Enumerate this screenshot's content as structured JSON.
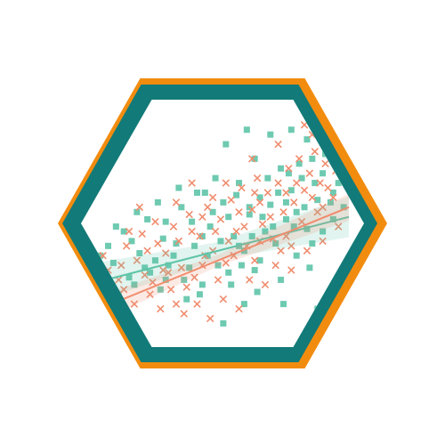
{
  "chart_data": {
    "type": "scatter",
    "title": "",
    "xlabel": "",
    "ylabel": "",
    "xlim": [
      0,
      100
    ],
    "ylim": [
      0,
      100
    ],
    "grid": false,
    "legend": "none",
    "frame": "hexagon",
    "frame_colors": {
      "outer": "#F28C0F",
      "inner": "#127A78"
    },
    "series": [
      {
        "marker": "square",
        "color": "#5EC4A8",
        "fit": {
          "intercept": 28,
          "slope": 0.28,
          "band": 6
        },
        "points": [
          [
            10,
            37
          ],
          [
            18,
            28
          ],
          [
            22,
            35
          ],
          [
            6,
            32
          ],
          [
            12,
            24
          ],
          [
            16,
            31
          ],
          [
            20,
            41
          ],
          [
            24,
            33
          ],
          [
            28,
            26
          ],
          [
            8,
            44
          ],
          [
            14,
            50
          ],
          [
            26,
            38
          ],
          [
            30,
            30
          ],
          [
            34,
            45
          ],
          [
            38,
            22
          ],
          [
            40,
            54
          ],
          [
            44,
            28
          ],
          [
            46,
            40
          ],
          [
            50,
            36
          ],
          [
            52,
            62
          ],
          [
            54,
            33
          ],
          [
            56,
            48
          ],
          [
            58,
            70
          ],
          [
            60,
            42
          ],
          [
            62,
            57
          ],
          [
            64,
            34
          ],
          [
            66,
            64
          ],
          [
            68,
            50
          ],
          [
            70,
            61
          ],
          [
            72,
            45
          ],
          [
            74,
            76
          ],
          [
            76,
            55
          ],
          [
            78,
            67
          ],
          [
            80,
            58
          ],
          [
            82,
            72
          ],
          [
            84,
            51
          ],
          [
            86,
            80
          ],
          [
            88,
            63
          ],
          [
            90,
            74
          ],
          [
            92,
            85
          ],
          [
            94,
            66
          ],
          [
            96,
            70
          ],
          [
            98,
            60
          ],
          [
            36,
            60
          ],
          [
            42,
            66
          ],
          [
            48,
            58
          ],
          [
            64,
            80
          ],
          [
            70,
            90
          ],
          [
            78,
            92
          ],
          [
            84,
            88
          ],
          [
            52,
            12
          ],
          [
            60,
            20
          ],
          [
            88,
            18
          ],
          [
            74,
            30
          ],
          [
            30,
            54
          ],
          [
            58,
            44
          ],
          [
            62,
            60
          ],
          [
            80,
            40
          ],
          [
            66,
            38
          ],
          [
            86,
            45
          ],
          [
            94,
            55
          ],
          [
            44,
            48
          ],
          [
            54,
            56
          ],
          [
            76,
            62
          ],
          [
            90,
            50
          ],
          [
            33,
            40
          ],
          [
            39,
            35
          ],
          [
            47,
            52
          ],
          [
            57,
            65
          ],
          [
            69,
            72
          ],
          [
            81,
            78
          ],
          [
            91,
            82
          ],
          [
            23,
            55
          ],
          [
            17,
            46
          ],
          [
            71,
            52
          ],
          [
            83,
            60
          ],
          [
            41,
            44
          ],
          [
            27,
            62
          ],
          [
            35,
            68
          ],
          [
            49,
            72
          ],
          [
            63,
            48
          ],
          [
            73,
            66
          ],
          [
            79,
            52
          ],
          [
            87,
            70
          ],
          [
            95,
            78
          ],
          [
            5,
            40
          ],
          [
            11,
            52
          ],
          [
            19,
            58
          ],
          [
            29,
            47
          ],
          [
            45,
            66
          ],
          [
            55,
            28
          ],
          [
            65,
            25
          ],
          [
            75,
            20
          ],
          [
            85,
            35
          ],
          [
            53,
            86
          ],
          [
            61,
            92
          ],
          [
            89,
            95
          ],
          [
            97,
            88
          ],
          [
            37,
            30
          ],
          [
            43,
            24
          ],
          [
            59,
            36
          ],
          [
            67,
            56
          ],
          [
            77,
            74
          ],
          [
            93,
            62
          ],
          [
            31,
            36
          ],
          [
            51,
            46
          ]
        ]
      },
      {
        "marker": "cross",
        "color": "#F08D6E",
        "fit": {
          "intercept": 16,
          "slope": 0.44,
          "band": 4
        },
        "points": [
          [
            8,
            34
          ],
          [
            12,
            30
          ],
          [
            15,
            44
          ],
          [
            19,
            38
          ],
          [
            21,
            49
          ],
          [
            25,
            29
          ],
          [
            27,
            45
          ],
          [
            30,
            41
          ],
          [
            33,
            52
          ],
          [
            36,
            35
          ],
          [
            39,
            57
          ],
          [
            41,
            31
          ],
          [
            43,
            48
          ],
          [
            46,
            60
          ],
          [
            48,
            42
          ],
          [
            51,
            55
          ],
          [
            53,
            37
          ],
          [
            55,
            63
          ],
          [
            57,
            50
          ],
          [
            59,
            68
          ],
          [
            61,
            44
          ],
          [
            63,
            59
          ],
          [
            65,
            72
          ],
          [
            67,
            53
          ],
          [
            69,
            66
          ],
          [
            71,
            47
          ],
          [
            73,
            70
          ],
          [
            75,
            58
          ],
          [
            77,
            76
          ],
          [
            79,
            62
          ],
          [
            81,
            80
          ],
          [
            83,
            67
          ],
          [
            85,
            74
          ],
          [
            87,
            83
          ],
          [
            89,
            70
          ],
          [
            91,
            78
          ],
          [
            93,
            88
          ],
          [
            95,
            75
          ],
          [
            97,
            82
          ],
          [
            99,
            70
          ],
          [
            10,
            22
          ],
          [
            14,
            26
          ],
          [
            18,
            20
          ],
          [
            24,
            24
          ],
          [
            28,
            18
          ],
          [
            32,
            26
          ],
          [
            37,
            16
          ],
          [
            42,
            20
          ],
          [
            47,
            14
          ],
          [
            52,
            22
          ],
          [
            58,
            18
          ],
          [
            62,
            30
          ],
          [
            68,
            28
          ],
          [
            72,
            36
          ],
          [
            78,
            34
          ],
          [
            84,
            42
          ],
          [
            90,
            46
          ],
          [
            96,
            52
          ],
          [
            20,
            60
          ],
          [
            26,
            54
          ],
          [
            34,
            62
          ],
          [
            40,
            50
          ],
          [
            45,
            40
          ],
          [
            50,
            30
          ],
          [
            56,
            40
          ],
          [
            60,
            52
          ],
          [
            66,
            46
          ],
          [
            70,
            56
          ],
          [
            76,
            48
          ],
          [
            82,
            54
          ],
          [
            88,
            58
          ],
          [
            94,
            64
          ],
          [
            16,
            50
          ],
          [
            22,
            32
          ],
          [
            31,
            33
          ],
          [
            35,
            46
          ],
          [
            38,
            27
          ],
          [
            44,
            36
          ],
          [
            49,
            50
          ],
          [
            54,
            46
          ],
          [
            64,
            38
          ],
          [
            74,
            42
          ],
          [
            80,
            70
          ],
          [
            86,
            64
          ],
          [
            92,
            68
          ],
          [
            98,
            92
          ],
          [
            6,
            40
          ],
          [
            13,
            36
          ],
          [
            23,
            42
          ],
          [
            29,
            34
          ],
          [
            53,
            70
          ],
          [
            63,
            80
          ],
          [
            73,
            86
          ],
          [
            83,
            94
          ],
          [
            58,
            58
          ],
          [
            66,
            62
          ],
          [
            76,
            66
          ],
          [
            86,
            90
          ],
          [
            40,
            70
          ],
          [
            48,
            64
          ],
          [
            34,
            20
          ],
          [
            44,
            56
          ],
          [
            64,
            66
          ],
          [
            78,
            44
          ],
          [
            90,
            60
          ],
          [
            96,
            86
          ]
        ]
      }
    ]
  }
}
